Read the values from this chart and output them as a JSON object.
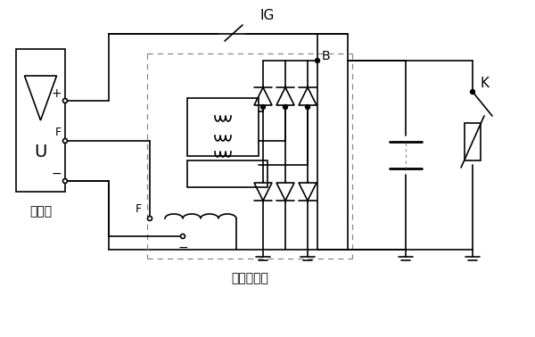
{
  "bg_color": "#ffffff",
  "line_color": "#000000",
  "dash_color": "#555555",
  "title_tiaojie": "调节器",
  "title_jidian": "交流发电机",
  "label_U": "U",
  "label_plus": "+",
  "label_minus": "−",
  "label_F_top": "F",
  "label_F_bot": "F",
  "label_IG": "IG",
  "label_B": "B",
  "label_K": "K"
}
